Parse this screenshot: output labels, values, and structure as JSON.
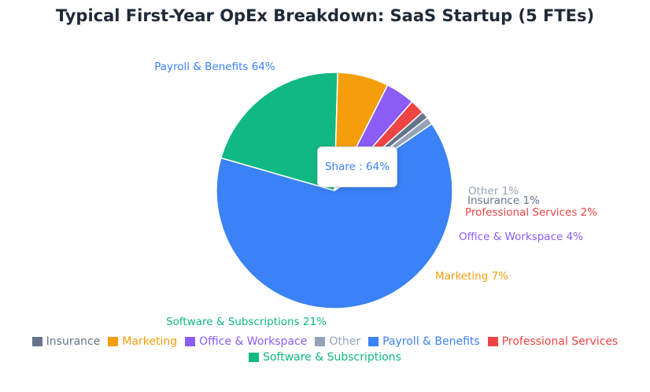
{
  "chart_data": {
    "type": "pie",
    "title": "Typical First-Year OpEx Breakdown: SaaS Startup (5 FTEs)",
    "unit": "%",
    "slices": [
      {
        "name": "Payroll & Benefits",
        "value": 64,
        "color": "#3b82f6",
        "label": "Payroll & Benefits 64%"
      },
      {
        "name": "Software & Subscriptions",
        "value": 21,
        "color": "#10b981",
        "label": "Software & Subscriptions 21%"
      },
      {
        "name": "Marketing",
        "value": 7,
        "color": "#f59e0b",
        "label": "Marketing 7%"
      },
      {
        "name": "Office & Workspace",
        "value": 4,
        "color": "#8b5cf6",
        "label": "Office & Workspace 4%"
      },
      {
        "name": "Professional Services",
        "value": 2,
        "color": "#ef4444",
        "label": "Professional Services 2%"
      },
      {
        "name": "Insurance",
        "value": 1,
        "color": "#64748b",
        "label": "Insurance 1%"
      },
      {
        "name": "Other",
        "value": 1,
        "color": "#94a3b8",
        "label": "Other 1%"
      }
    ],
    "legend": {
      "position": "bottom",
      "items": [
        {
          "name": "Insurance",
          "color": "#64748b"
        },
        {
          "name": "Marketing",
          "color": "#f59e0b"
        },
        {
          "name": "Office & Workspace",
          "color": "#8b5cf6"
        },
        {
          "name": "Other",
          "color": "#94a3b8"
        },
        {
          "name": "Payroll & Benefits",
          "color": "#3b82f6"
        },
        {
          "name": "Professional Services",
          "color": "#ef4444"
        },
        {
          "name": "Software & Subscriptions",
          "color": "#10b981"
        }
      ]
    },
    "tooltip": {
      "text": "Share : 64%",
      "series": "Payroll & Benefits"
    }
  }
}
